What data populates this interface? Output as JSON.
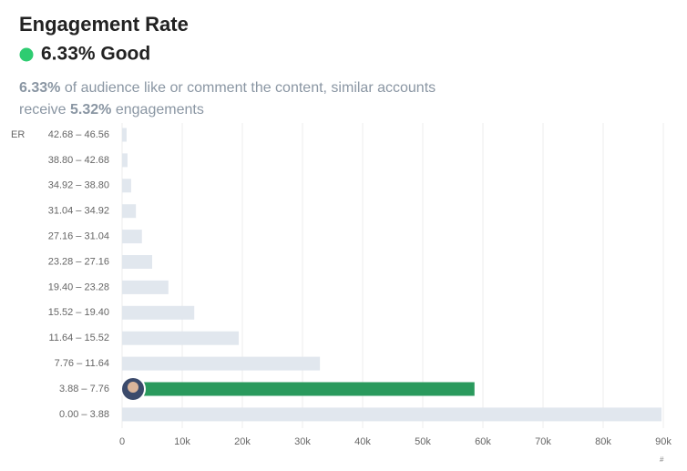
{
  "header": {
    "title": "Engagement Rate",
    "rate": "6.33% Good",
    "line1": {
      "bold": "6.33%",
      "text": " of audience like or comment the content, similar accounts"
    },
    "line2": {
      "text": "receive ",
      "bold": "5.32%",
      "text2": " engagements"
    }
  },
  "chart_data": {
    "type": "hbar",
    "y_label": "ER",
    "x_label": "#",
    "categories": [
      "42.68 – 46.56",
      "38.80 – 42.68",
      "34.92 – 38.80",
      "31.04 – 34.92",
      "27.16 – 31.04",
      "23.28 – 27.16",
      "19.40 – 23.28",
      "15.52 – 19.40",
      "11.64 – 15.52",
      "7.76 – 11.64",
      "3.88 – 7.76",
      "0.00 – 3.88"
    ],
    "values": [
      750,
      900,
      1500,
      2300,
      3300,
      5000,
      7700,
      12000,
      19400,
      32900,
      58600,
      89700
    ],
    "colors": [
      "#e1e7ee",
      "#e1e7ee",
      "#e1e7ee",
      "#e1e7ee",
      "#e1e7ee",
      "#e1e7ee",
      "#e1e7ee",
      "#e1e7ee",
      "#e1e7ee",
      "#e1e7ee",
      "#2a9a5d",
      "#e1e7ee"
    ],
    "xlim": [
      0,
      90000
    ],
    "xticks": [
      0,
      {
        "value": 10000,
        "label": "10k"
      },
      {
        "value": 20000,
        "label": "20k"
      },
      {
        "value": 30000,
        "label": "30k"
      },
      {
        "value": 40000,
        "label": "40k"
      },
      {
        "value": 50000,
        "label": "50k"
      },
      {
        "value": 60000,
        "label": "60k"
      },
      {
        "value": 70000,
        "label": "70k"
      },
      {
        "value": 80000,
        "label": "80k"
      },
      {
        "value": 90000,
        "label": "90k"
      }
    ],
    "grid": true
  }
}
